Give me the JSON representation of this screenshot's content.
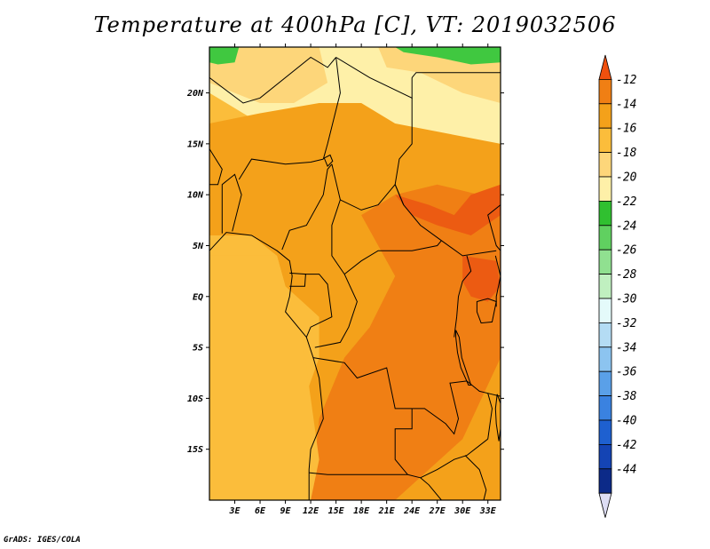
{
  "title": "Temperature at 400hPa [C], VT: 2019032506",
  "credit": "GrADS: IGES/COLA",
  "map": {
    "lon_range": [
      0,
      34.5
    ],
    "lat_range": [
      -20,
      24.5
    ],
    "x_ticks": [
      {
        "value": 3,
        "label": "3E"
      },
      {
        "value": 6,
        "label": "6E"
      },
      {
        "value": 9,
        "label": "9E"
      },
      {
        "value": 12,
        "label": "12E"
      },
      {
        "value": 15,
        "label": "15E"
      },
      {
        "value": 18,
        "label": "18E"
      },
      {
        "value": 21,
        "label": "21E"
      },
      {
        "value": 24,
        "label": "24E"
      },
      {
        "value": 27,
        "label": "27E"
      },
      {
        "value": 30,
        "label": "30E"
      },
      {
        "value": 33,
        "label": "33E"
      }
    ],
    "y_ticks": [
      {
        "value": 20,
        "label": "20N"
      },
      {
        "value": 15,
        "label": "15N"
      },
      {
        "value": 10,
        "label": "10N"
      },
      {
        "value": 5,
        "label": "5N"
      },
      {
        "value": 0,
        "label": "EQ"
      },
      {
        "value": -5,
        "label": "5S"
      },
      {
        "value": -10,
        "label": "10S"
      },
      {
        "value": -15,
        "label": "15S"
      }
    ],
    "field_colors": {
      "bg": "#fbbd3b",
      "band_lt16": "#f4a11a",
      "band_lt14": "#f07f14",
      "band_lt12": "#ec5b12",
      "band_m18": "#fdd67a",
      "band_m20": "#fef0a8",
      "band_green": "#40c840",
      "border": "#000000"
    }
  },
  "colorbar": {
    "levels": [
      "-12",
      "-14",
      "-16",
      "-18",
      "-20",
      "-22",
      "-24",
      "-26",
      "-28",
      "-30",
      "-32",
      "-34",
      "-36",
      "-38",
      "-40",
      "-42",
      "-44"
    ],
    "colors": [
      "#f0500e",
      "#f07f14",
      "#f4a11a",
      "#fbbd3b",
      "#fdd67a",
      "#fef0a8",
      "#30c030",
      "#60d060",
      "#90e090",
      "#c0f0c0",
      "#e4fafa",
      "#b4dcf4",
      "#8cc4f0",
      "#5aa0e8",
      "#3a82e0",
      "#1e60d0",
      "#1444b4",
      "#0c2a88",
      "#ddddf4"
    ]
  }
}
